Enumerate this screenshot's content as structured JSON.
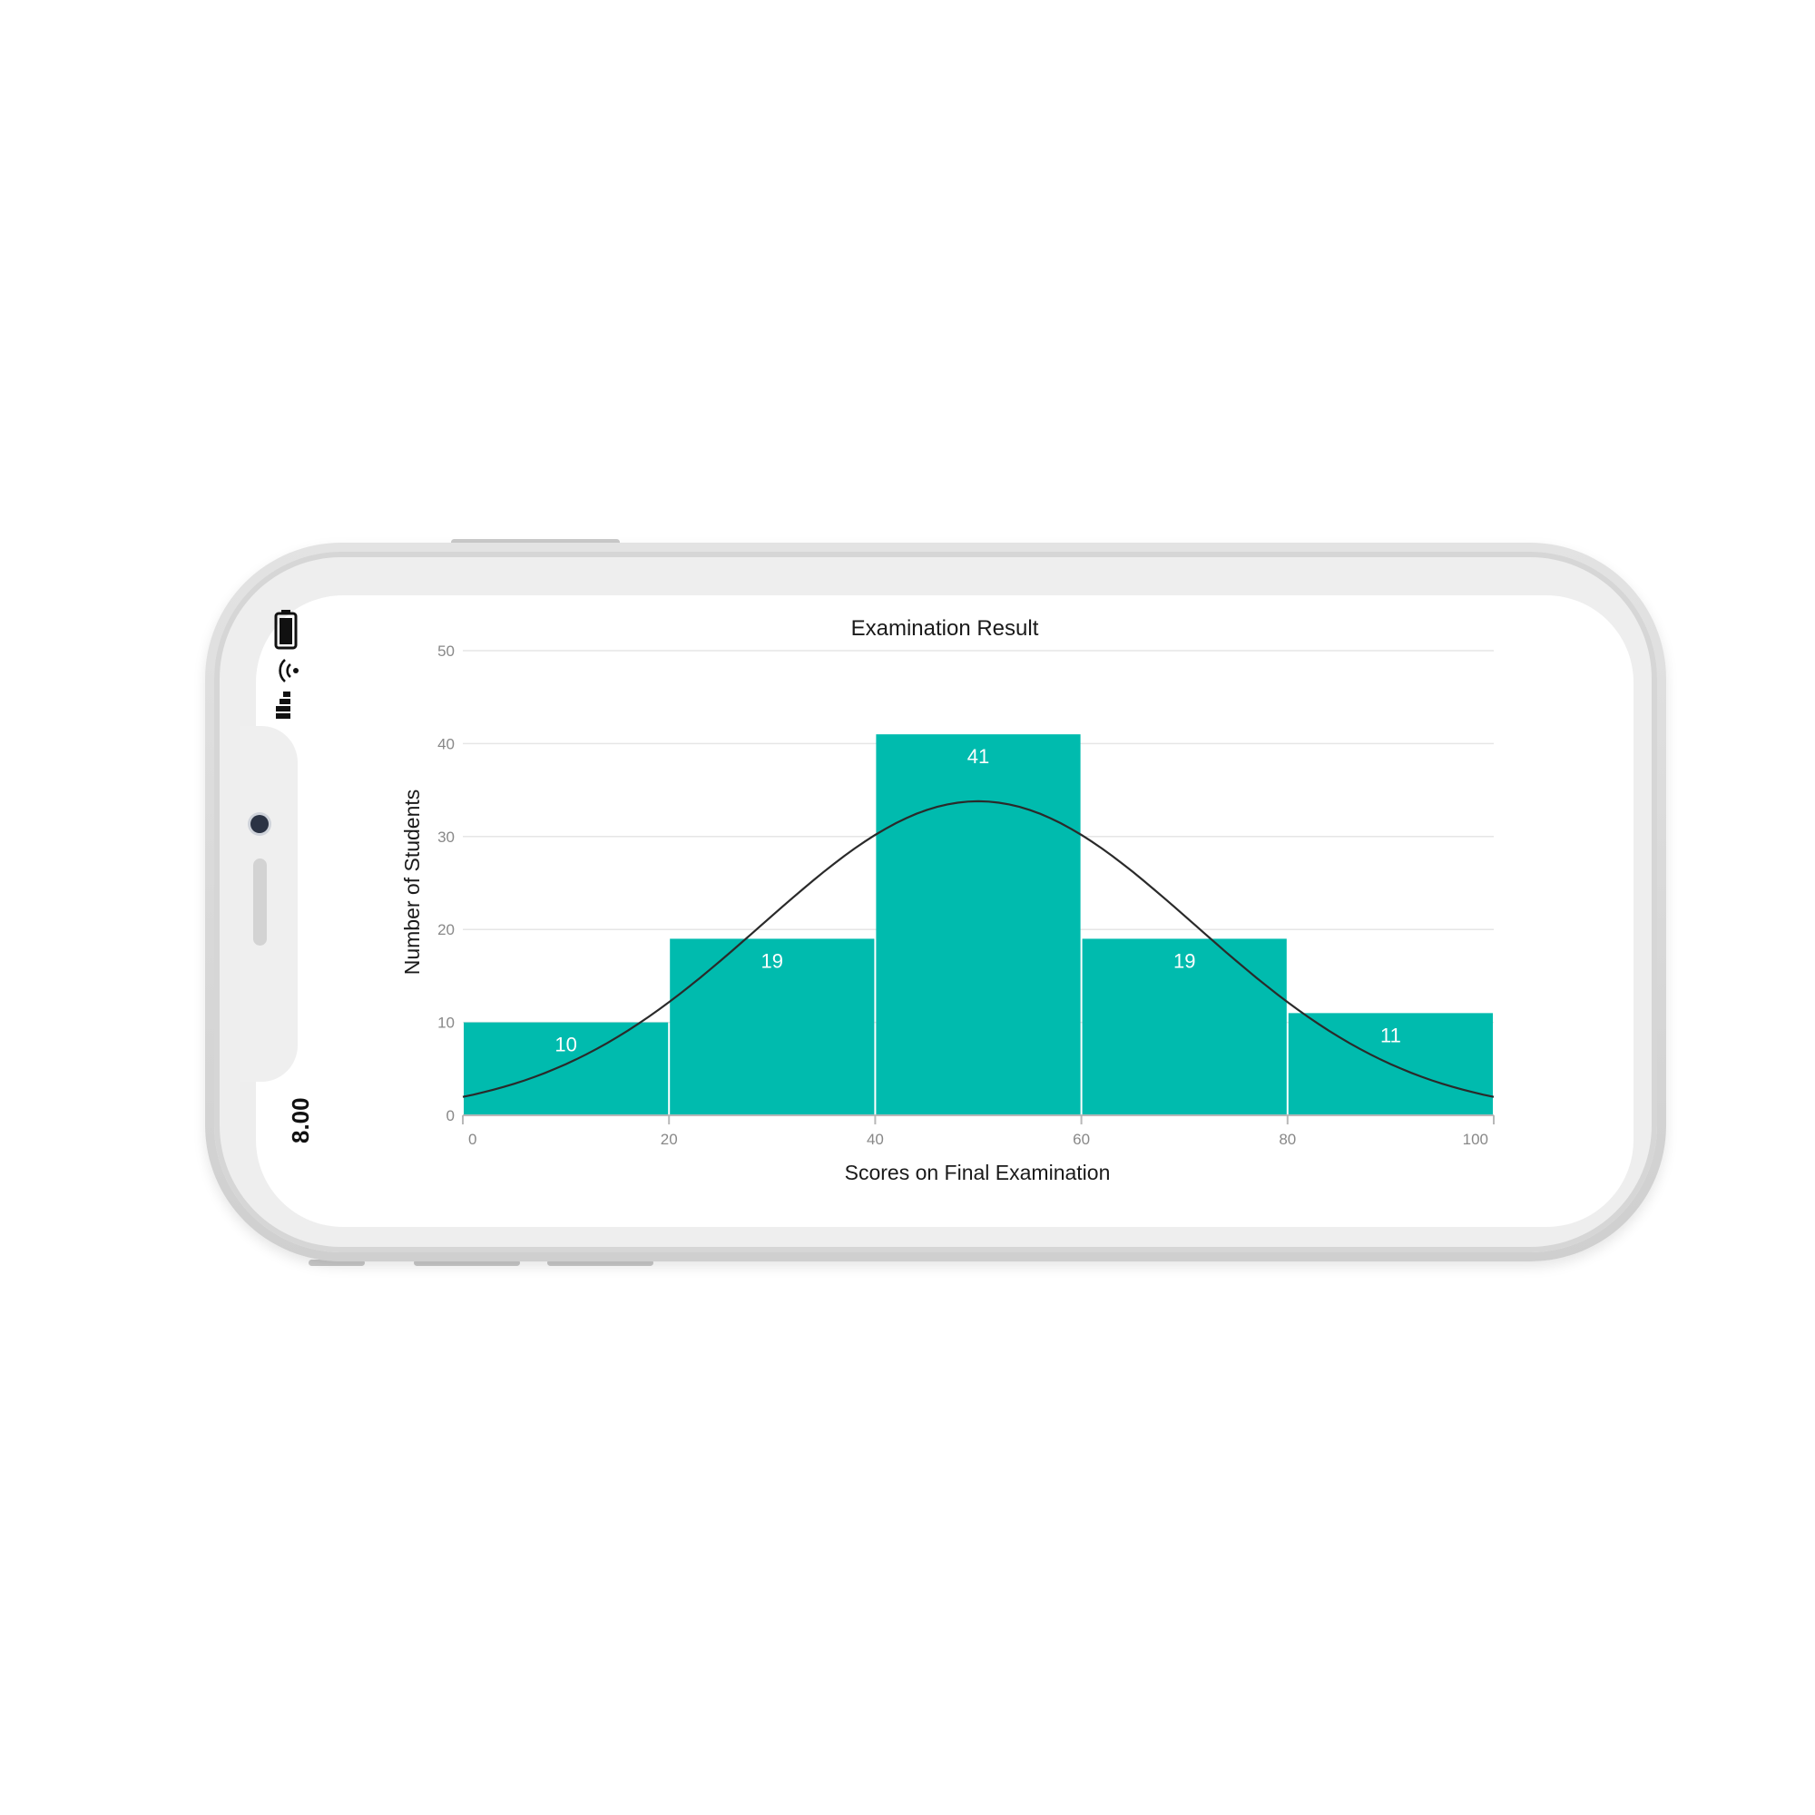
{
  "status_bar": {
    "time": "8.00",
    "battery_icon": "battery-icon",
    "wifi_icon": "wifi-icon",
    "signal_icon": "cellular-signal-icon"
  },
  "colors": {
    "bar": "#00BBAE",
    "curve": "#2a2a2a",
    "grid": "#e6e6e6",
    "axis": "#b8b8b8",
    "tick_text": "#888888",
    "label_text": "#1a1a1a"
  },
  "chart_data": {
    "type": "bar",
    "title": "Examination Result",
    "xlabel": "Scores on Final Examination",
    "ylabel": "Number of Students",
    "bins": [
      {
        "from": 0,
        "to": 20,
        "value": 10
      },
      {
        "from": 20,
        "to": 40,
        "value": 19
      },
      {
        "from": 40,
        "to": 60,
        "value": 41
      },
      {
        "from": 60,
        "to": 80,
        "value": 19
      },
      {
        "from": 80,
        "to": 100,
        "value": 11
      }
    ],
    "data_labels": [
      "10",
      "19",
      "41",
      "19",
      "11"
    ],
    "x_ticks": [
      "0",
      "20",
      "40",
      "60",
      "80",
      "100"
    ],
    "y_ticks": [
      "0",
      "10",
      "20",
      "30",
      "40",
      "50"
    ],
    "xlim": [
      0,
      100
    ],
    "ylim": [
      0,
      50
    ],
    "grid": true,
    "normal_curve": {
      "mean": 50,
      "std_dev": 21,
      "peak": 33.8
    }
  }
}
